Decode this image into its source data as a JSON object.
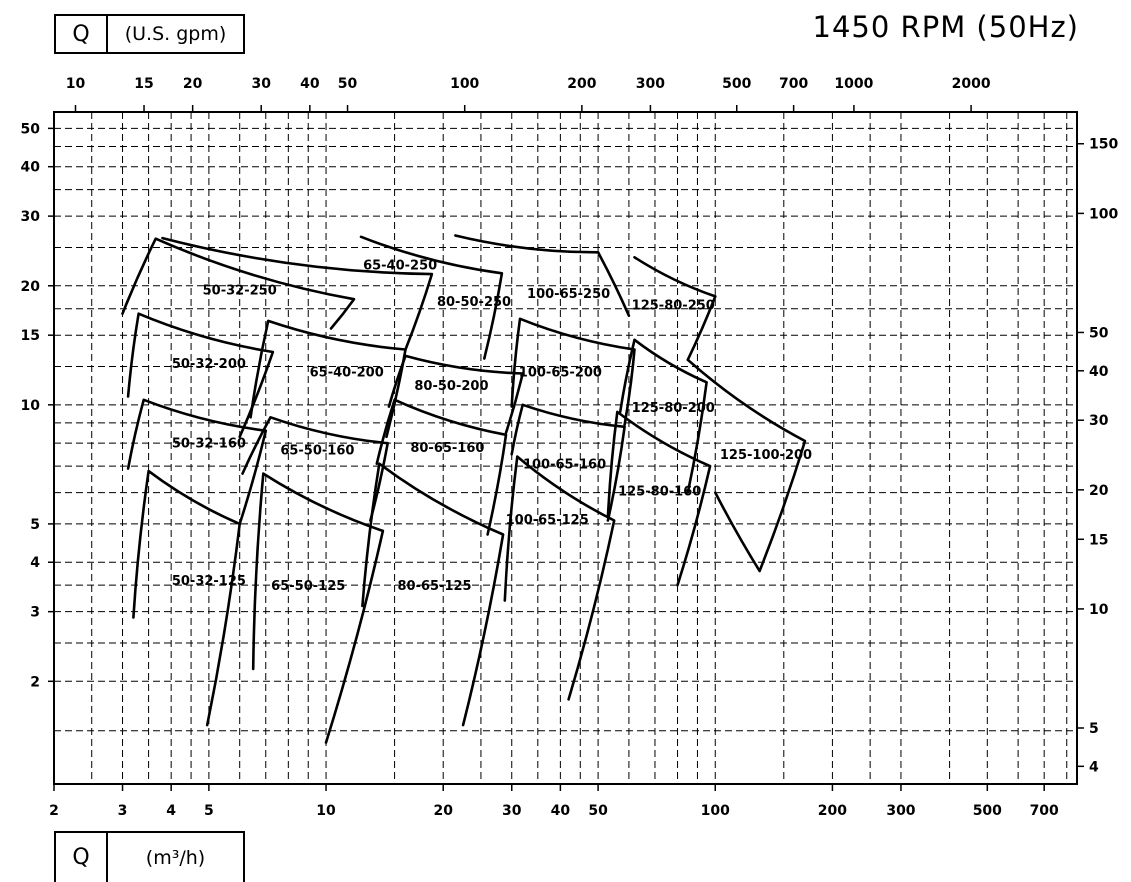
{
  "header": {
    "flow_symbol": "Q",
    "gpm_unit": "(U.S. gpm)",
    "m3h_unit": "(m³/h)",
    "speed_title": "1450 RPM  (50Hz)"
  },
  "chart_data": {
    "type": "line",
    "title": "1450 RPM  (50Hz)",
    "xlabel": "Q (m³/h)",
    "x2label": "Q (U.S. gpm)",
    "ylabel": "",
    "x_scale": "log",
    "y_scale": "log",
    "xlim": [
      2,
      850
    ],
    "ylim": [
      1.1,
      55
    ],
    "x_ticks": [
      2,
      3,
      4,
      5,
      10,
      20,
      30,
      40,
      50,
      100,
      200,
      300,
      500,
      700
    ],
    "x_gridlines": [
      2.5,
      3,
      3.5,
      4,
      4.5,
      5,
      6,
      7,
      8,
      9,
      10,
      15,
      20,
      25,
      30,
      35,
      40,
      45,
      50,
      60,
      70,
      80,
      90,
      100,
      150,
      200,
      250,
      300,
      400,
      500,
      600,
      700,
      800
    ],
    "y_ticks": [
      2,
      3,
      4,
      5,
      10,
      15,
      20,
      30,
      40,
      50
    ],
    "y_gridlines": [
      1.5,
      2,
      2.5,
      3,
      3.5,
      4,
      5,
      6,
      7,
      8,
      9,
      10,
      12.5,
      15,
      17.5,
      20,
      25,
      30,
      35,
      40,
      45,
      50
    ],
    "top_axis_ticks": [
      10,
      15,
      20,
      30,
      40,
      50,
      100,
      200,
      300,
      500,
      700,
      1000,
      2000
    ],
    "right_axis_ticks": [
      4,
      5,
      10,
      15,
      20,
      30,
      40,
      50,
      100,
      150
    ],
    "grid": true,
    "series": [
      {
        "name": "50-32-125",
        "points": [
          [
            3.2,
            2.9
          ],
          [
            3.5,
            6.8
          ],
          [
            6.0,
            5.0
          ],
          [
            4.95,
            1.55
          ]
        ]
      },
      {
        "name": "50-32-160",
        "points": [
          [
            3.1,
            6.9
          ],
          [
            3.4,
            10.3
          ],
          [
            7.0,
            8.6
          ],
          [
            6.0,
            5.0
          ]
        ]
      },
      {
        "name": "50-32-200",
        "points": [
          [
            3.1,
            10.5
          ],
          [
            3.3,
            17.0
          ],
          [
            7.3,
            13.6
          ],
          [
            6.0,
            8.3
          ]
        ]
      },
      {
        "name": "50-32-250",
        "points": [
          [
            3.0,
            17.0
          ],
          [
            3.65,
            26.3
          ],
          [
            11.8,
            18.5
          ],
          [
            10.3,
            15.6
          ]
        ]
      },
      {
        "name": "65-50-125",
        "points": [
          [
            6.5,
            2.15
          ],
          [
            6.9,
            6.7
          ],
          [
            14.0,
            4.8
          ],
          [
            10.0,
            1.4
          ]
        ]
      },
      {
        "name": "65-50-160",
        "points": [
          [
            6.1,
            6.7
          ],
          [
            7.2,
            9.3
          ],
          [
            14.4,
            8.0
          ],
          [
            13.0,
            5.1
          ]
        ]
      },
      {
        "name": "65-40-200",
        "points": [
          [
            6.4,
            9.3
          ],
          [
            7.1,
            16.3
          ],
          [
            16.0,
            13.8
          ],
          [
            14.3,
            8.3
          ]
        ]
      },
      {
        "name": "65-40-250",
        "points": [
          [
            3.8,
            26.4
          ],
          [
            18.7,
            21.4
          ],
          [
            16.0,
            13.8
          ]
        ]
      },
      {
        "name": "80-65-125",
        "points": [
          [
            12.4,
            3.1
          ],
          [
            13.7,
            7.1
          ],
          [
            28.5,
            4.7
          ],
          [
            22.5,
            1.55
          ]
        ]
      },
      {
        "name": "80-65-160",
        "points": [
          [
            13.5,
            7.1
          ],
          [
            15.0,
            10.3
          ],
          [
            29.0,
            8.4
          ],
          [
            26.0,
            4.7
          ]
        ]
      },
      {
        "name": "80-50-200",
        "points": [
          [
            14.5,
            9.9
          ],
          [
            16.0,
            13.3
          ],
          [
            32.0,
            12.0
          ],
          [
            29.0,
            8.5
          ]
        ]
      },
      {
        "name": "80-50-250",
        "points": [
          [
            12.3,
            26.6
          ],
          [
            28.3,
            21.5
          ],
          [
            25.5,
            13.1
          ]
        ]
      },
      {
        "name": "100-65-125",
        "points": [
          [
            28.8,
            3.2
          ],
          [
            31.0,
            7.4
          ],
          [
            55.0,
            5.1
          ],
          [
            42.0,
            1.8
          ]
        ]
      },
      {
        "name": "100-65-160",
        "points": [
          [
            30.0,
            7.5
          ],
          [
            32.0,
            10.0
          ],
          [
            58.5,
            8.8
          ],
          [
            53.0,
            5.1
          ]
        ]
      },
      {
        "name": "100-65-200",
        "points": [
          [
            30.0,
            9.9
          ],
          [
            31.5,
            16.5
          ],
          [
            62.0,
            13.8
          ],
          [
            58.5,
            8.9
          ]
        ]
      },
      {
        "name": "100-65-250",
        "points": [
          [
            21.5,
            26.8
          ],
          [
            50.0,
            24.3
          ],
          [
            60.0,
            16.8
          ]
        ]
      },
      {
        "name": "125-80-160",
        "points": [
          [
            53.0,
            5.2
          ],
          [
            56.0,
            9.6
          ],
          [
            97.0,
            7.0
          ],
          [
            80.0,
            3.5
          ]
        ]
      },
      {
        "name": "125-80-200",
        "points": [
          [
            57.0,
            9.6
          ],
          [
            62.0,
            14.6
          ],
          [
            95.0,
            11.4
          ],
          [
            85.0,
            6.0
          ]
        ]
      },
      {
        "name": "125-80-250",
        "points": [
          [
            62.0,
            23.6
          ],
          [
            100.0,
            18.8
          ],
          [
            85.0,
            13.0
          ]
        ]
      },
      {
        "name": "125-100-200",
        "points": [
          [
            85.0,
            13.0
          ],
          [
            170.0,
            8.1
          ],
          [
            130.0,
            3.8
          ],
          [
            100.0,
            6.0
          ]
        ]
      }
    ],
    "curve_labels": [
      {
        "text": "50-32-250",
        "x": 6.0,
        "y": 19.0
      },
      {
        "text": "65-40-250",
        "x": 15.5,
        "y": 22.0
      },
      {
        "text": "80-50-250",
        "x": 24.0,
        "y": 17.8
      },
      {
        "text": "100-65-250",
        "x": 42.0,
        "y": 18.6
      },
      {
        "text": "125-80-250",
        "x": 78.0,
        "y": 17.4
      },
      {
        "text": "50-32-200",
        "x": 5.0,
        "y": 12.4
      },
      {
        "text": "65-40-200",
        "x": 11.3,
        "y": 11.8
      },
      {
        "text": "80-50-200",
        "x": 21.0,
        "y": 10.9
      },
      {
        "text": "100-65-200",
        "x": 40.0,
        "y": 11.8
      },
      {
        "text": "125-80-200",
        "x": 78.0,
        "y": 9.6
      },
      {
        "text": "50-32-160",
        "x": 5.0,
        "y": 7.8
      },
      {
        "text": "65-50-160",
        "x": 9.5,
        "y": 7.5
      },
      {
        "text": "80-65-160",
        "x": 20.5,
        "y": 7.6
      },
      {
        "text": "100-65-160",
        "x": 41.0,
        "y": 6.9
      },
      {
        "text": "125-80-160",
        "x": 72.0,
        "y": 5.9
      },
      {
        "text": "125-100-200",
        "x": 135.0,
        "y": 7.3
      },
      {
        "text": "100-65-125",
        "x": 37.0,
        "y": 5.0
      },
      {
        "text": "50-32-125",
        "x": 5.0,
        "y": 3.5
      },
      {
        "text": "65-50-125",
        "x": 9.0,
        "y": 3.4
      },
      {
        "text": "80-65-125",
        "x": 19.0,
        "y": 3.4
      }
    ]
  }
}
